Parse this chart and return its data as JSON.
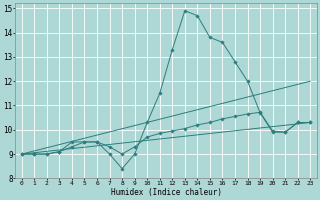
{
  "title": "",
  "xlabel": "Humidex (Indice chaleur)",
  "ylabel": "",
  "xlim": [
    -0.5,
    23.5
  ],
  "ylim": [
    8,
    15.2
  ],
  "yticks": [
    8,
    9,
    10,
    11,
    12,
    13,
    14,
    15
  ],
  "xticks": [
    0,
    1,
    2,
    3,
    4,
    5,
    6,
    7,
    8,
    9,
    10,
    11,
    12,
    13,
    14,
    15,
    16,
    17,
    18,
    19,
    20,
    21,
    22,
    23
  ],
  "bg_color": "#aed8d5",
  "grid_color": "#ffffff",
  "line_color": "#2d7d7d",
  "line1_x": [
    0,
    1,
    2,
    3,
    4,
    5,
    6,
    7,
    8,
    9,
    10,
    11,
    12,
    13,
    14,
    15,
    16,
    17,
    18,
    19,
    20,
    21,
    22,
    23
  ],
  "line1_y": [
    9.0,
    9.0,
    9.0,
    9.1,
    9.5,
    9.5,
    9.5,
    9.0,
    8.4,
    9.0,
    10.3,
    11.5,
    13.3,
    14.9,
    14.7,
    13.8,
    13.6,
    12.8,
    12.0,
    10.7,
    9.9,
    9.9,
    10.3,
    10.3
  ],
  "line2_x": [
    0,
    1,
    2,
    3,
    4,
    5,
    6,
    7,
    8,
    9,
    10,
    11,
    12,
    13,
    14,
    15,
    16,
    17,
    18,
    19,
    20,
    21,
    22,
    23
  ],
  "line2_y": [
    9.0,
    9.0,
    9.0,
    9.1,
    9.3,
    9.5,
    9.5,
    9.3,
    9.0,
    9.3,
    9.7,
    9.85,
    9.95,
    10.05,
    10.2,
    10.3,
    10.45,
    10.55,
    10.65,
    10.72,
    9.95,
    9.9,
    10.3,
    10.3
  ],
  "trend1": [
    9.0,
    12.0
  ],
  "trend2": [
    9.0,
    10.3
  ],
  "trend_x": [
    0,
    23
  ],
  "figsize": [
    3.2,
    2.0
  ],
  "dpi": 100
}
